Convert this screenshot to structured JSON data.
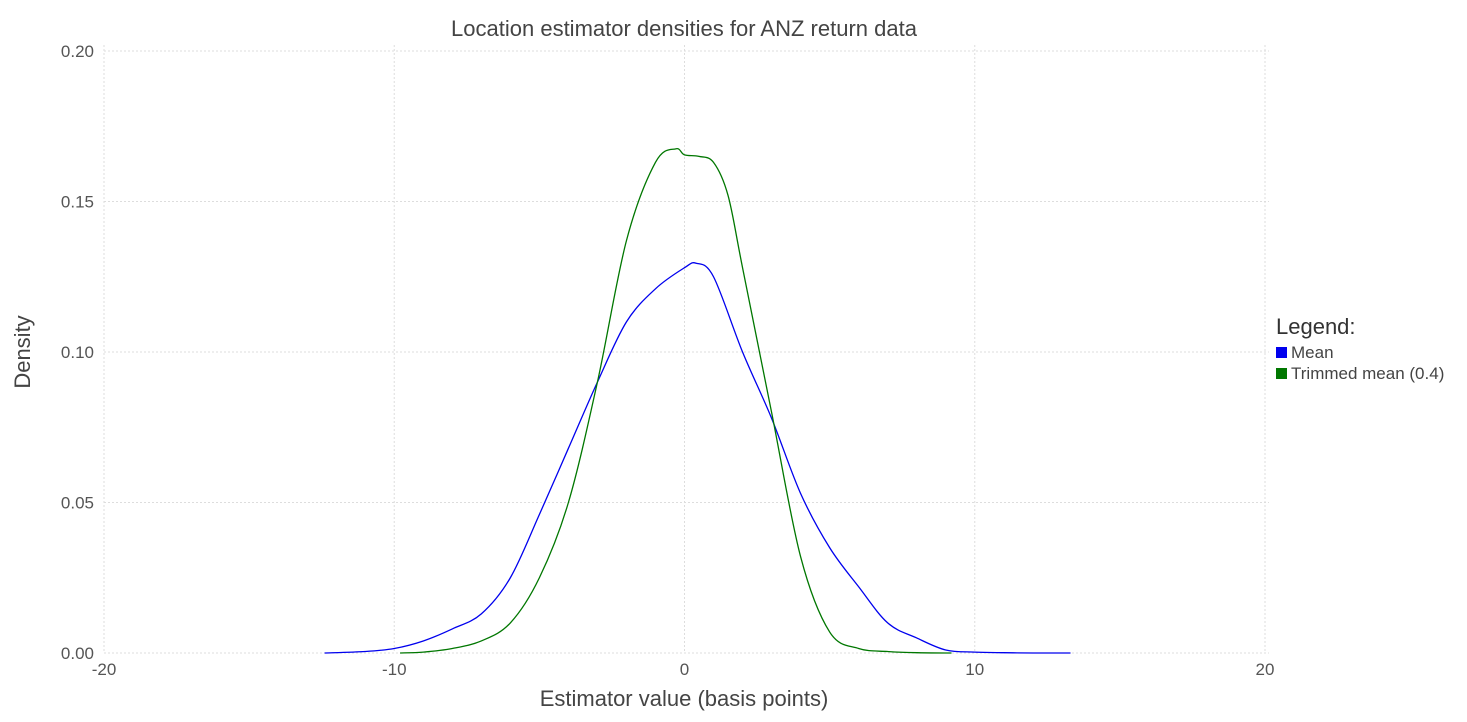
{
  "chart_data": {
    "type": "line",
    "title": "Location estimator densities for ANZ return data",
    "xlabel": "Estimator value (basis points)",
    "ylabel": "Density",
    "xlim": [
      -20,
      20
    ],
    "ylim": [
      0,
      0.2
    ],
    "x_ticks": [
      -20,
      -10,
      0,
      10,
      20
    ],
    "x_tick_labels": [
      "-20",
      "-10",
      "0",
      "10",
      "20"
    ],
    "y_ticks": [
      0,
      0.05,
      0.1,
      0.15,
      0.2
    ],
    "y_tick_labels": [
      "0.00",
      "0.05",
      "0.10",
      "0.15",
      "0.20"
    ],
    "grid": true,
    "legend": {
      "title": "Legend:",
      "placement": "right"
    },
    "series": [
      {
        "name": "Mean",
        "color": "#0000ee",
        "x": [
          -12.4,
          -11,
          -10,
          -9,
          -8,
          -7,
          -6,
          -5,
          -4,
          -3,
          -2,
          -1,
          0,
          0.4,
          1,
          2,
          3,
          4,
          5,
          6,
          7,
          8,
          9,
          10,
          11,
          12,
          13.3
        ],
        "y": [
          0.0,
          0.0005,
          0.0015,
          0.004,
          0.008,
          0.013,
          0.025,
          0.046,
          0.068,
          0.09,
          0.11,
          0.121,
          0.128,
          0.1295,
          0.125,
          0.1,
          0.078,
          0.053,
          0.035,
          0.022,
          0.01,
          0.005,
          0.001,
          0.0003,
          0.0001,
          0.0,
          0.0
        ]
      },
      {
        "name": "Trimmed mean (0.4)",
        "color": "#007700",
        "x": [
          -9.8,
          -9,
          -8,
          -7,
          -6,
          -5,
          -4,
          -3,
          -2,
          -1,
          -0.3,
          0,
          0.5,
          1,
          1.5,
          2,
          3,
          4,
          5,
          6,
          7,
          8,
          9.2
        ],
        "y": [
          0.0,
          0.0003,
          0.0015,
          0.004,
          0.01,
          0.025,
          0.05,
          0.09,
          0.137,
          0.163,
          0.1675,
          0.1655,
          0.165,
          0.163,
          0.152,
          0.128,
          0.08,
          0.032,
          0.007,
          0.0015,
          0.0005,
          0.0001,
          0.0
        ]
      }
    ]
  }
}
